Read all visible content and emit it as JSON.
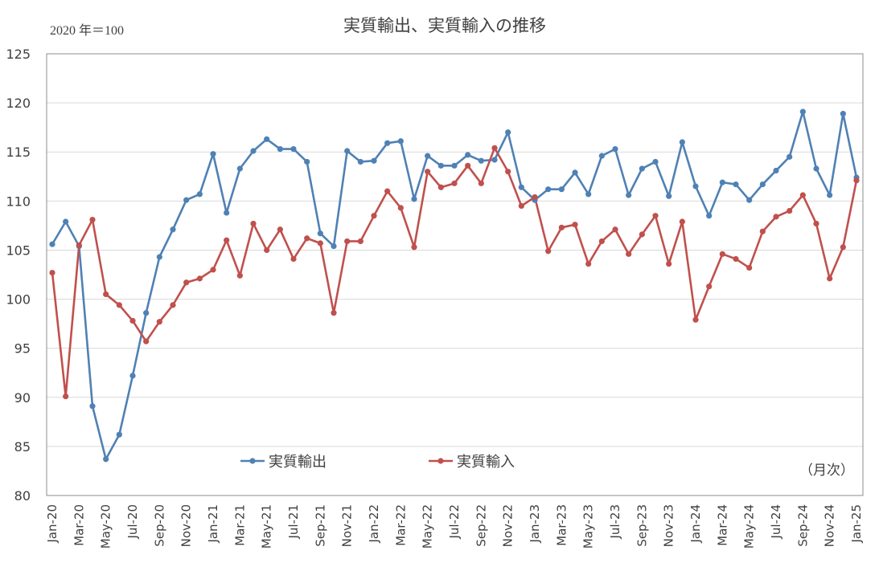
{
  "chart_data": {
    "type": "line",
    "title": "実質輸出、実質輸入の推移",
    "unit_label": "2020 年＝100",
    "frequency_label": "（月次）",
    "ylim": [
      80,
      125
    ],
    "yticks": [
      80,
      85,
      90,
      95,
      100,
      105,
      110,
      115,
      120,
      125
    ],
    "grid": true,
    "legend_position": "bottom-center",
    "x": [
      "Jan-20",
      "Feb-20",
      "Mar-20",
      "Apr-20",
      "May-20",
      "Jun-20",
      "Jul-20",
      "Aug-20",
      "Sep-20",
      "Oct-20",
      "Nov-20",
      "Dec-20",
      "Jan-21",
      "Feb-21",
      "Mar-21",
      "Apr-21",
      "May-21",
      "Jun-21",
      "Jul-21",
      "Aug-21",
      "Sep-21",
      "Oct-21",
      "Nov-21",
      "Dec-21",
      "Jan-22",
      "Feb-22",
      "Mar-22",
      "Apr-22",
      "May-22",
      "Jun-22",
      "Jul-22",
      "Aug-22",
      "Sep-22",
      "Oct-22",
      "Nov-22",
      "Dec-22",
      "Jan-23",
      "Feb-23",
      "Mar-23",
      "Apr-23",
      "May-23",
      "Jun-23",
      "Jul-23",
      "Aug-23",
      "Sep-23",
      "Oct-23",
      "Nov-23",
      "Dec-23",
      "Jan-24",
      "Feb-24",
      "Mar-24",
      "Apr-24",
      "May-24",
      "Jun-24",
      "Jul-24",
      "Aug-24",
      "Sep-24",
      "Oct-24",
      "Nov-24",
      "Dec-24",
      "Jan-25"
    ],
    "xtick_labels": [
      "Jan-20",
      "Mar-20",
      "May-20",
      "Jul-20",
      "Sep-20",
      "Nov-20",
      "Jan-21",
      "Mar-21",
      "May-21",
      "Jul-21",
      "Sep-21",
      "Nov-21",
      "Jan-22",
      "Mar-22",
      "May-22",
      "Jul-22",
      "Sep-22",
      "Nov-22",
      "Jan-23",
      "Mar-23",
      "May-23",
      "Jul-23",
      "Sep-23",
      "Nov-23",
      "Jan-24",
      "Mar-24",
      "May-24",
      "Jul-24",
      "Sep-24",
      "Nov-24",
      "Jan-25"
    ],
    "series": [
      {
        "name": "実質輸出",
        "color": "#4f81b4",
        "values": [
          105.6,
          107.9,
          105.4,
          89.1,
          83.7,
          86.2,
          92.2,
          98.6,
          104.3,
          107.1,
          110.1,
          110.7,
          114.8,
          108.8,
          113.3,
          115.1,
          116.3,
          115.3,
          115.3,
          114.0,
          106.7,
          105.4,
          115.1,
          114.0,
          114.1,
          115.9,
          116.1,
          110.2,
          114.6,
          113.6,
          113.6,
          114.7,
          114.1,
          114.2,
          117.0,
          111.4,
          110.1,
          111.2,
          111.2,
          112.9,
          110.7,
          114.6,
          115.3,
          110.6,
          113.3,
          114.0,
          110.5,
          116.0,
          111.5,
          108.5,
          111.9,
          111.7,
          110.1,
          111.7,
          113.1,
          114.5,
          119.1,
          113.3,
          110.6,
          118.9,
          112.4
        ]
      },
      {
        "name": "実質輸入",
        "color": "#c0504d",
        "values": [
          102.7,
          90.1,
          105.5,
          108.1,
          100.5,
          99.4,
          97.8,
          95.7,
          97.7,
          99.4,
          101.7,
          102.1,
          103.0,
          106.0,
          102.4,
          107.7,
          105.0,
          107.1,
          104.1,
          106.2,
          105.7,
          98.6,
          105.9,
          105.9,
          108.5,
          111.0,
          109.3,
          105.3,
          113.0,
          111.4,
          111.8,
          113.6,
          111.8,
          115.4,
          113.0,
          109.5,
          110.4,
          104.9,
          107.3,
          107.6,
          103.6,
          105.9,
          107.1,
          104.6,
          106.6,
          108.5,
          103.6,
          107.9,
          97.9,
          101.3,
          104.6,
          104.1,
          103.2,
          106.9,
          108.4,
          109.0,
          110.6,
          107.7,
          102.1,
          105.3,
          112.1
        ]
      }
    ]
  }
}
